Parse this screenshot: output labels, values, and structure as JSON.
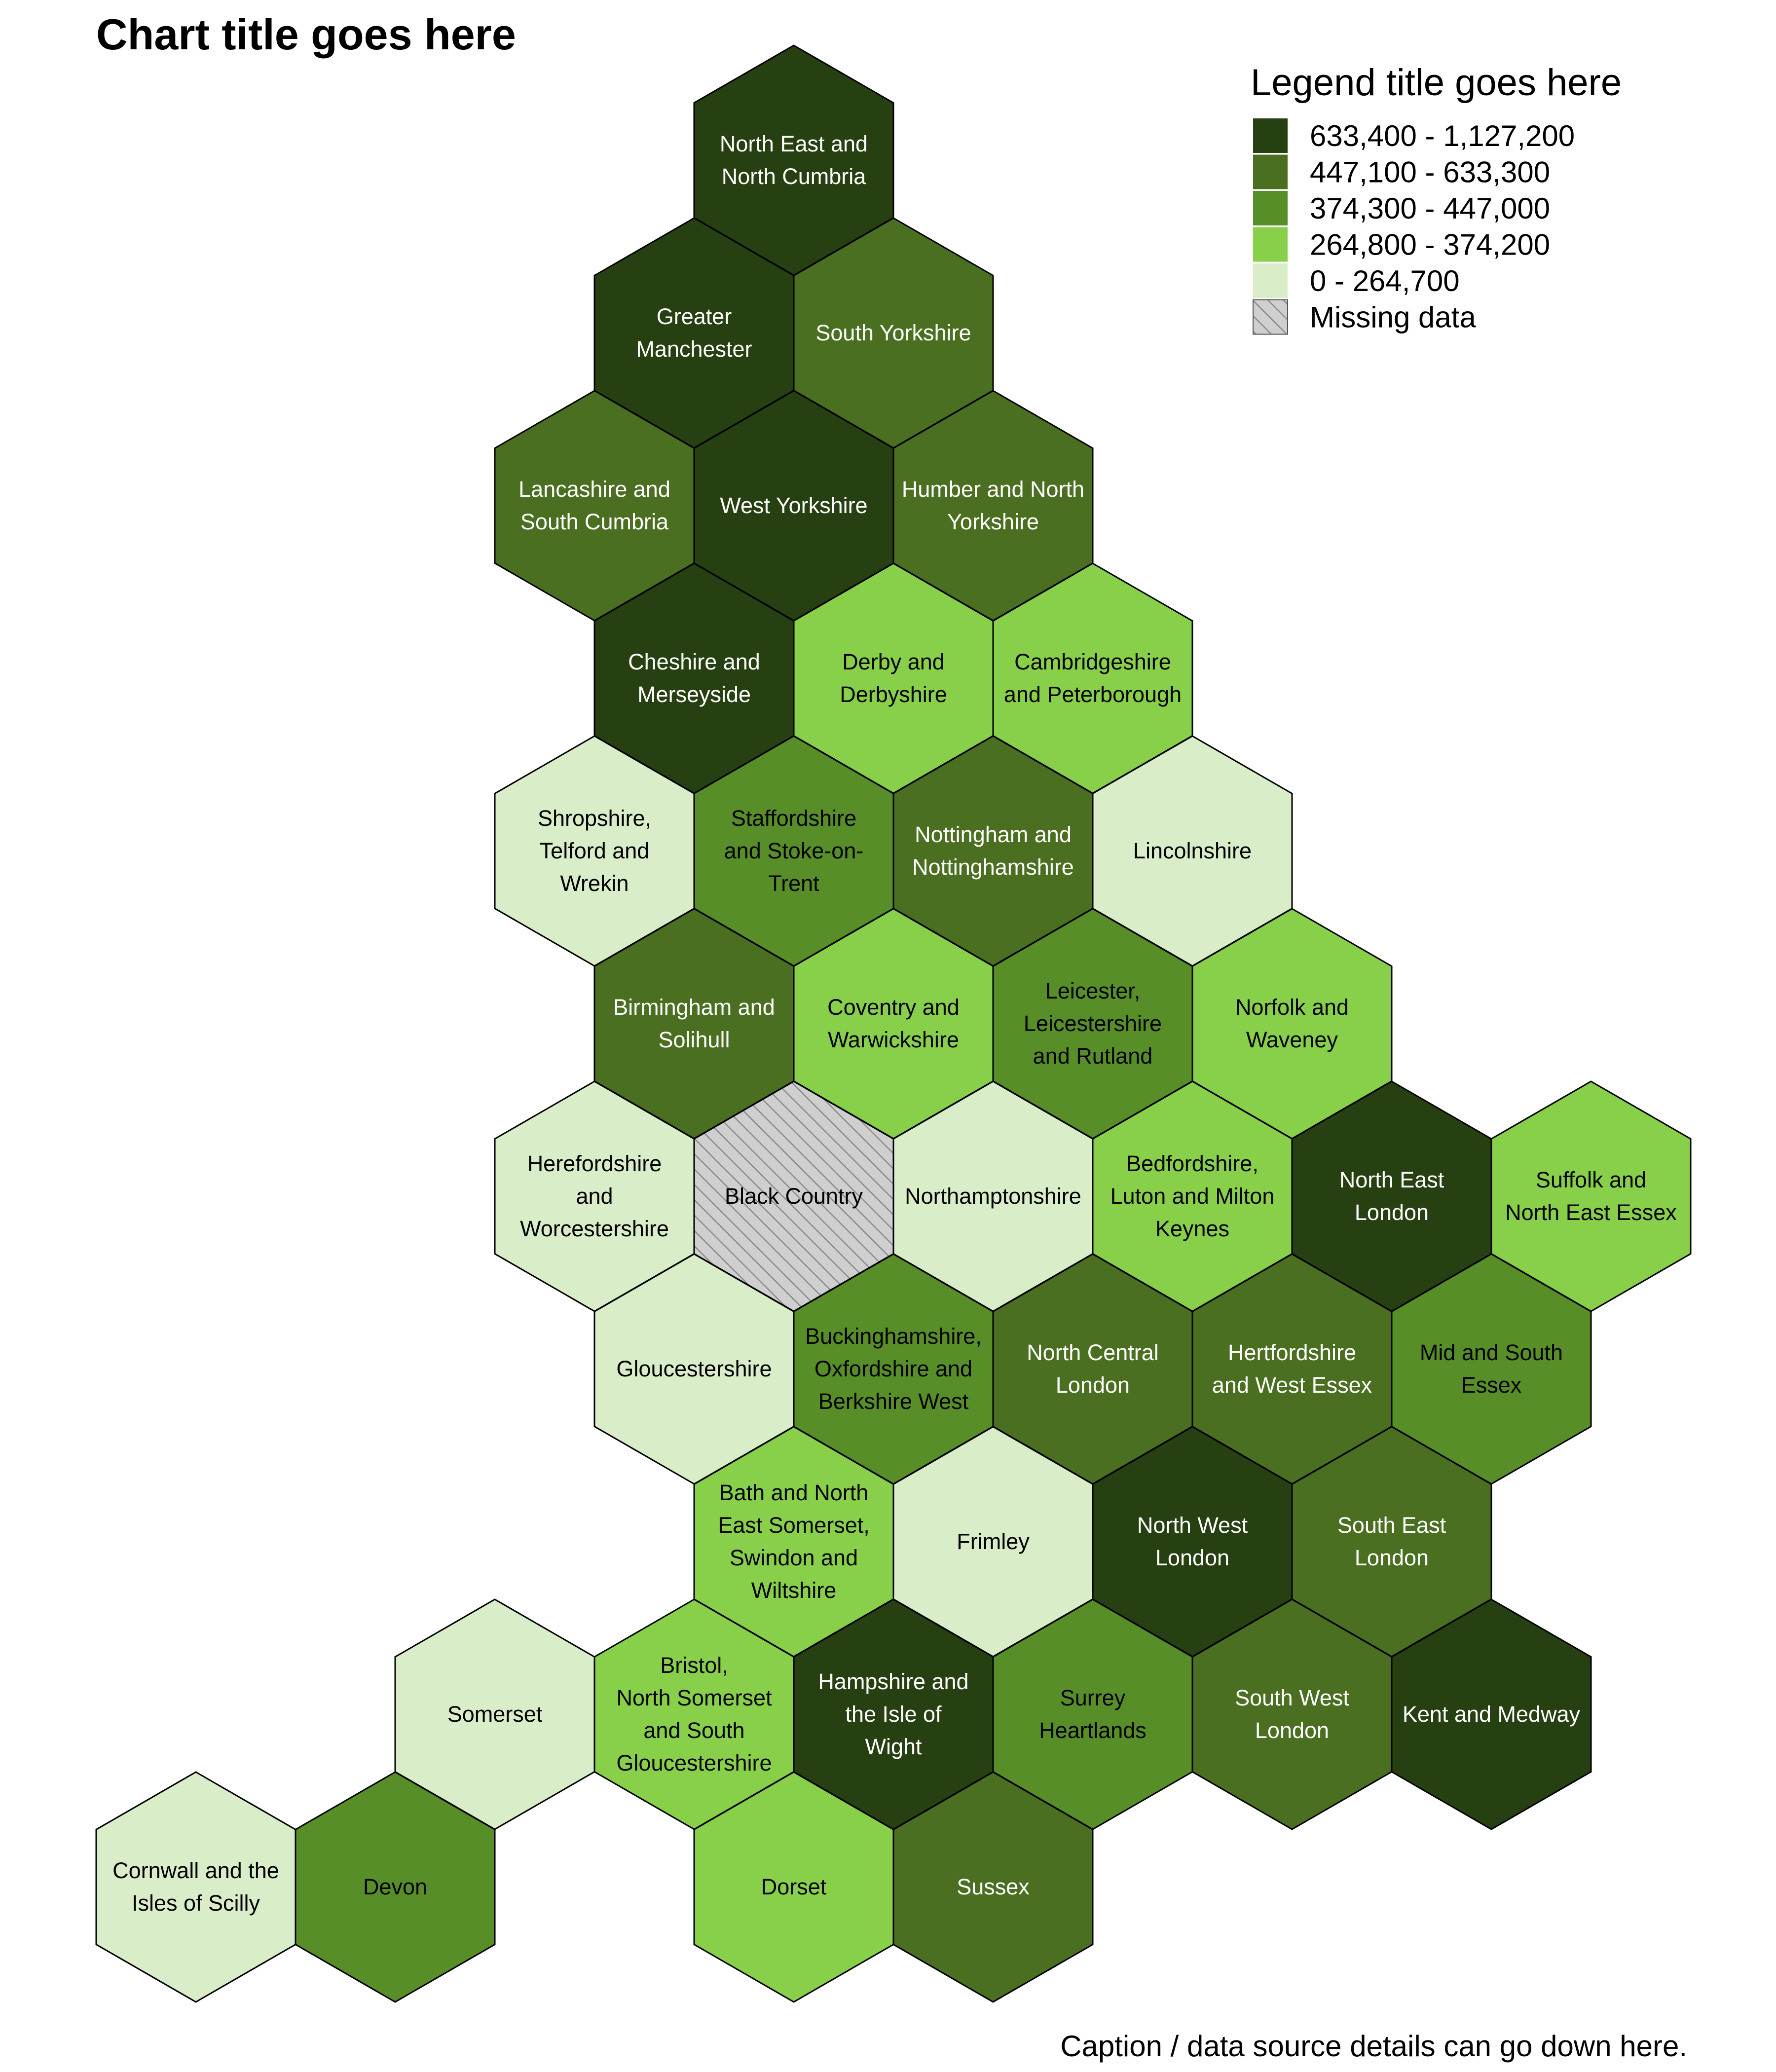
{
  "title": "Chart title goes here",
  "caption": "Caption / data source details can go down here.",
  "legend": {
    "title": "Legend title goes here",
    "items": [
      {
        "label": "633,400 - 1,127,200",
        "color": "#274011",
        "category": 5
      },
      {
        "label": "447,100 - 633,300",
        "color": "#4a6f20",
        "category": 4
      },
      {
        "label": "374,300 - 447,000",
        "color": "#578e27",
        "category": 3
      },
      {
        "label": "264,800 - 374,200",
        "color": "#88d049",
        "category": 2
      },
      {
        "label": "0 - 264,700",
        "color": "#d9edc8",
        "category": 1
      },
      {
        "label": "Missing data",
        "color": "#cfcfcf",
        "category": 0,
        "pattern": "hatched"
      }
    ]
  },
  "chart_data": {
    "type": "hexmap",
    "title": "Chart title goes here",
    "legend_title": "Legend title goes here",
    "legend_position": "top-right",
    "regions": [
      {
        "name": "North East and North Cumbria",
        "lines": [
          "North East and",
          "North Cumbria"
        ],
        "category": 5,
        "row": 0,
        "col": 7
      },
      {
        "name": "Greater Manchester",
        "lines": [
          "Greater",
          "Manchester"
        ],
        "category": 5,
        "row": 1,
        "col": 6
      },
      {
        "name": "South Yorkshire",
        "lines": [
          "South Yorkshire"
        ],
        "category": 4,
        "row": 1,
        "col": 8
      },
      {
        "name": "Lancashire and South Cumbria",
        "lines": [
          "Lancashire and",
          "South Cumbria"
        ],
        "category": 4,
        "row": 2,
        "col": 5
      },
      {
        "name": "West Yorkshire",
        "lines": [
          "West Yorkshire"
        ],
        "category": 5,
        "row": 2,
        "col": 7
      },
      {
        "name": "Humber and North Yorkshire",
        "lines": [
          "Humber and North",
          "Yorkshire"
        ],
        "category": 4,
        "row": 2,
        "col": 9
      },
      {
        "name": "Cheshire and Merseyside",
        "lines": [
          "Cheshire and",
          "Merseyside"
        ],
        "category": 5,
        "row": 3,
        "col": 6
      },
      {
        "name": "Derby and Derbyshire",
        "lines": [
          "Derby and",
          "Derbyshire"
        ],
        "category": 2,
        "row": 3,
        "col": 8
      },
      {
        "name": "Cambridgeshire and Peterborough",
        "lines": [
          "Cambridgeshire",
          "and Peterborough"
        ],
        "category": 2,
        "row": 3,
        "col": 10
      },
      {
        "name": "Shropshire, Telford and Wrekin",
        "lines": [
          "Shropshire,",
          "Telford and",
          "Wrekin"
        ],
        "category": 1,
        "row": 4,
        "col": 5
      },
      {
        "name": "Staffordshire and Stoke-on-Trent",
        "lines": [
          "Staffordshire",
          "and Stoke-on-",
          "Trent"
        ],
        "category": 3,
        "row": 4,
        "col": 7
      },
      {
        "name": "Nottingham and Nottinghamshire",
        "lines": [
          "Nottingham and",
          "Nottinghamshire"
        ],
        "category": 4,
        "row": 4,
        "col": 9
      },
      {
        "name": "Lincolnshire",
        "lines": [
          "Lincolnshire"
        ],
        "category": 1,
        "row": 4,
        "col": 11
      },
      {
        "name": "Birmingham and Solihull",
        "lines": [
          "Birmingham and",
          "Solihull"
        ],
        "category": 4,
        "row": 5,
        "col": 6
      },
      {
        "name": "Coventry and Warwickshire",
        "lines": [
          "Coventry and",
          "Warwickshire"
        ],
        "category": 2,
        "row": 5,
        "col": 8
      },
      {
        "name": "Leicester, Leicestershire and Rutland",
        "lines": [
          "Leicester,",
          "Leicestershire",
          "and Rutland"
        ],
        "category": 3,
        "row": 5,
        "col": 10
      },
      {
        "name": "Norfolk and Waveney",
        "lines": [
          "Norfolk and",
          "Waveney"
        ],
        "category": 2,
        "row": 5,
        "col": 12
      },
      {
        "name": "Herefordshire and Worcestershire",
        "lines": [
          "Herefordshire",
          "and",
          "Worcestershire"
        ],
        "category": 1,
        "row": 6,
        "col": 5
      },
      {
        "name": "Black Country",
        "lines": [
          "Black Country"
        ],
        "category": 0,
        "row": 6,
        "col": 7
      },
      {
        "name": "Northamptonshire",
        "lines": [
          "Northamptonshire"
        ],
        "category": 1,
        "row": 6,
        "col": 9
      },
      {
        "name": "Bedfordshire, Luton and Milton Keynes",
        "lines": [
          "Bedfordshire,",
          "Luton and Milton",
          "Keynes"
        ],
        "category": 2,
        "row": 6,
        "col": 11
      },
      {
        "name": "North East London",
        "lines": [
          "North East",
          "London"
        ],
        "category": 5,
        "row": 6,
        "col": 13
      },
      {
        "name": "Suffolk and North East Essex",
        "lines": [
          "Suffolk and",
          "North East Essex"
        ],
        "category": 2,
        "row": 6,
        "col": 15
      },
      {
        "name": "Gloucestershire",
        "lines": [
          "Gloucestershire"
        ],
        "category": 1,
        "row": 7,
        "col": 6
      },
      {
        "name": "Buckinghamshire, Oxfordshire and Berkshire West",
        "lines": [
          "Buckinghamshire,",
          "Oxfordshire and",
          "Berkshire West"
        ],
        "category": 3,
        "row": 7,
        "col": 8
      },
      {
        "name": "North Central London",
        "lines": [
          "North Central",
          "London"
        ],
        "category": 4,
        "row": 7,
        "col": 10
      },
      {
        "name": "Hertfordshire and West Essex",
        "lines": [
          "Hertfordshire",
          "and West Essex"
        ],
        "category": 4,
        "row": 7,
        "col": 12
      },
      {
        "name": "Mid and South Essex",
        "lines": [
          "Mid and South",
          "Essex"
        ],
        "category": 3,
        "row": 7,
        "col": 14
      },
      {
        "name": "Bath and North East Somerset, Swindon and Wiltshire",
        "lines": [
          "Bath and North",
          "East Somerset,",
          "Swindon and",
          "Wiltshire"
        ],
        "category": 2,
        "row": 8,
        "col": 7
      },
      {
        "name": "Frimley",
        "lines": [
          "Frimley"
        ],
        "category": 1,
        "row": 8,
        "col": 9
      },
      {
        "name": "North West London",
        "lines": [
          "North West",
          "London"
        ],
        "category": 5,
        "row": 8,
        "col": 11
      },
      {
        "name": "South East London",
        "lines": [
          "South East",
          "London"
        ],
        "category": 4,
        "row": 8,
        "col": 13
      },
      {
        "name": "Somerset",
        "lines": [
          "Somerset"
        ],
        "category": 1,
        "row": 9,
        "col": 4
      },
      {
        "name": "Bristol, North Somerset and South Gloucestershire",
        "lines": [
          "Bristol,",
          "North Somerset",
          "and South",
          "Gloucestershire"
        ],
        "category": 2,
        "row": 9,
        "col": 6
      },
      {
        "name": "Hampshire and the Isle of Wight",
        "lines": [
          "Hampshire and",
          "the Isle of",
          "Wight"
        ],
        "category": 5,
        "row": 9,
        "col": 8
      },
      {
        "name": "Surrey Heartlands",
        "lines": [
          "Surrey",
          "Heartlands"
        ],
        "category": 3,
        "row": 9,
        "col": 10
      },
      {
        "name": "South West London",
        "lines": [
          "South West",
          "London"
        ],
        "category": 4,
        "row": 9,
        "col": 12
      },
      {
        "name": "Kent and Medway",
        "lines": [
          "Kent and Medway"
        ],
        "category": 5,
        "row": 9,
        "col": 14
      },
      {
        "name": "Cornwall and the Isles of Scilly",
        "lines": [
          "Cornwall and the",
          "Isles of Scilly"
        ],
        "category": 1,
        "row": 10,
        "col": 1
      },
      {
        "name": "Devon",
        "lines": [
          "Devon"
        ],
        "category": 3,
        "row": 10,
        "col": 3
      },
      {
        "name": "Dorset",
        "lines": [
          "Dorset"
        ],
        "category": 2,
        "row": 10,
        "col": 7
      },
      {
        "name": "Sussex",
        "lines": [
          "Sussex"
        ],
        "category": 4,
        "row": 10,
        "col": 9
      }
    ]
  }
}
